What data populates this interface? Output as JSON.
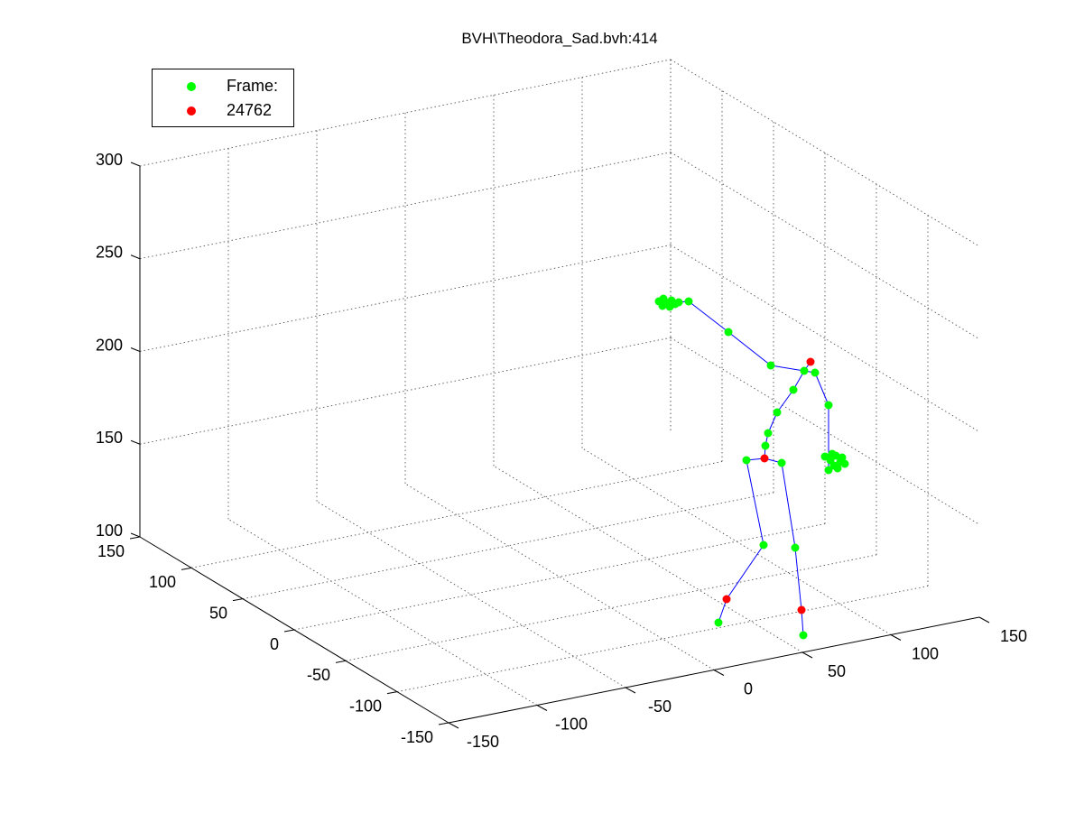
{
  "chart_data": {
    "type": "scatter",
    "title": "BVH\\Theodora_Sad.bvh:414",
    "legend": {
      "placement": "top-left",
      "entries": [
        {
          "label": "Frame:",
          "color": "#00ff00"
        },
        {
          "label": "24762",
          "color": "#ff0000"
        }
      ]
    },
    "axes": {
      "x_ticks": [
        "-150",
        "-100",
        "-50",
        "0",
        "50",
        "100",
        "150"
      ],
      "y_ticks": [
        "-150",
        "-100",
        "-50",
        "0",
        "50",
        "100",
        "150"
      ],
      "z_ticks": [
        "100",
        "150",
        "200",
        "250",
        "300"
      ],
      "xlim": [
        -150,
        150
      ],
      "ylim": [
        -150,
        150
      ],
      "zlim": [
        100,
        300
      ],
      "grid": true
    },
    "series": [
      {
        "color": "#00ff00",
        "role": "joints"
      },
      {
        "color": "#ff0000",
        "role": "highlighted joints"
      },
      {
        "color": "#0000ff",
        "role": "bones"
      }
    ]
  }
}
